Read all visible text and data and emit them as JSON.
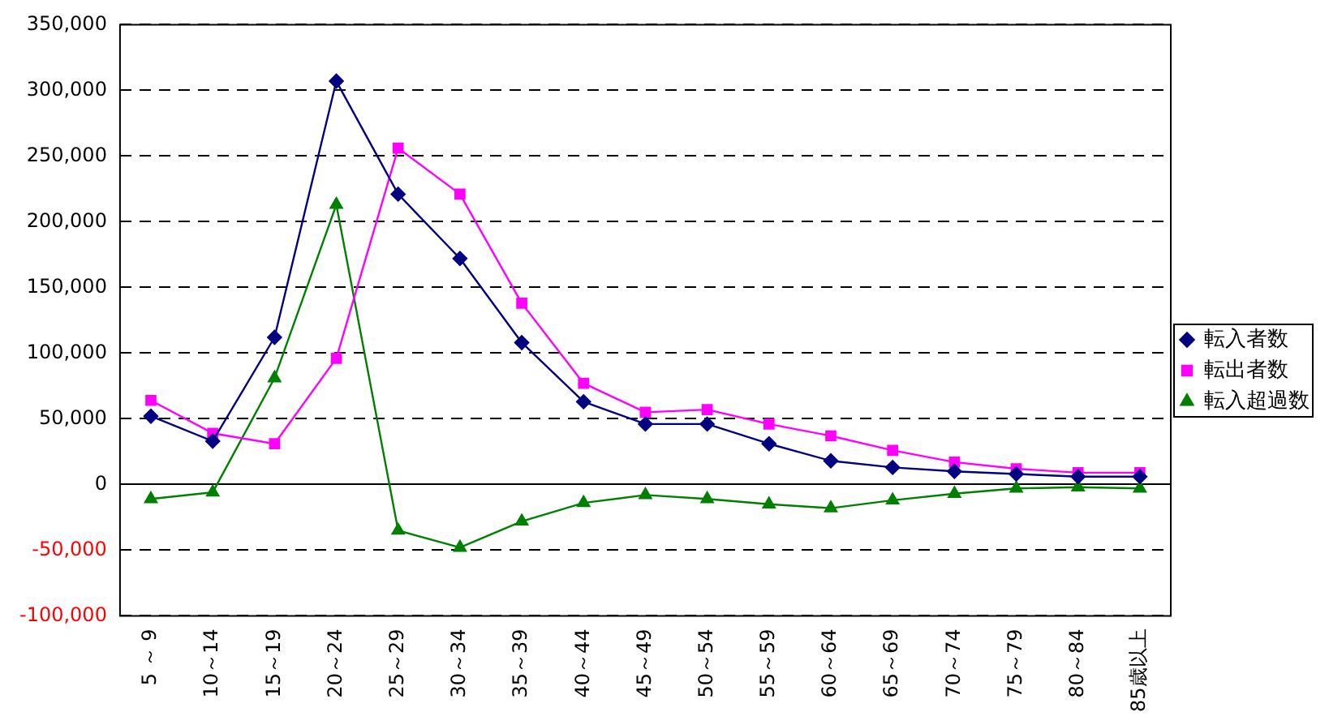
{
  "chart_data": {
    "type": "line",
    "categories": [
      "5 ～ 9",
      "10～14",
      "15～19",
      "20～24",
      "25～29",
      "30～34",
      "35～39",
      "40～44",
      "45～49",
      "50～54",
      "55～59",
      "60～64",
      "65～69",
      "70～74",
      "75～79",
      "80～84",
      "85歳以上"
    ],
    "series": [
      {
        "name": "転入者数",
        "color": "#000080",
        "marker": "diamond",
        "values": [
          52000,
          33000,
          112000,
          307000,
          221000,
          172000,
          108000,
          63000,
          46000,
          46000,
          31000,
          18000,
          13000,
          10000,
          8000,
          6000,
          6000
        ]
      },
      {
        "name": "転出者数",
        "color": "#ff00ff",
        "marker": "square",
        "values": [
          64000,
          39000,
          31000,
          96000,
          256000,
          221000,
          138000,
          77000,
          55000,
          57000,
          46000,
          37000,
          26000,
          17000,
          12000,
          9000,
          9000
        ]
      },
      {
        "name": "転入超過数",
        "color": "#008000",
        "marker": "triangle",
        "values": [
          -11000,
          -6000,
          81000,
          213000,
          -35000,
          -48000,
          -28000,
          -14000,
          -8000,
          -11000,
          -15000,
          -18000,
          -12000,
          -7000,
          -3000,
          -2000,
          -3000
        ]
      }
    ],
    "ylim": [
      -100000,
      350000
    ],
    "yticks": [
      {
        "value": -100000,
        "label": "-100,000"
      },
      {
        "value": -50000,
        "label": "-50,000"
      },
      0,
      {
        "value": 50000,
        "label": "50,000"
      },
      {
        "value": 100000,
        "label": "100,000"
      },
      {
        "value": 150000,
        "label": "150,000"
      },
      {
        "value": 200000,
        "label": "200,000"
      },
      {
        "value": 250000,
        "label": "250,000"
      },
      {
        "value": 300000,
        "label": "300,000"
      },
      {
        "value": 350000,
        "label": "350,000"
      }
    ],
    "grid": "y",
    "legend": "right",
    "line_style": "solid"
  }
}
